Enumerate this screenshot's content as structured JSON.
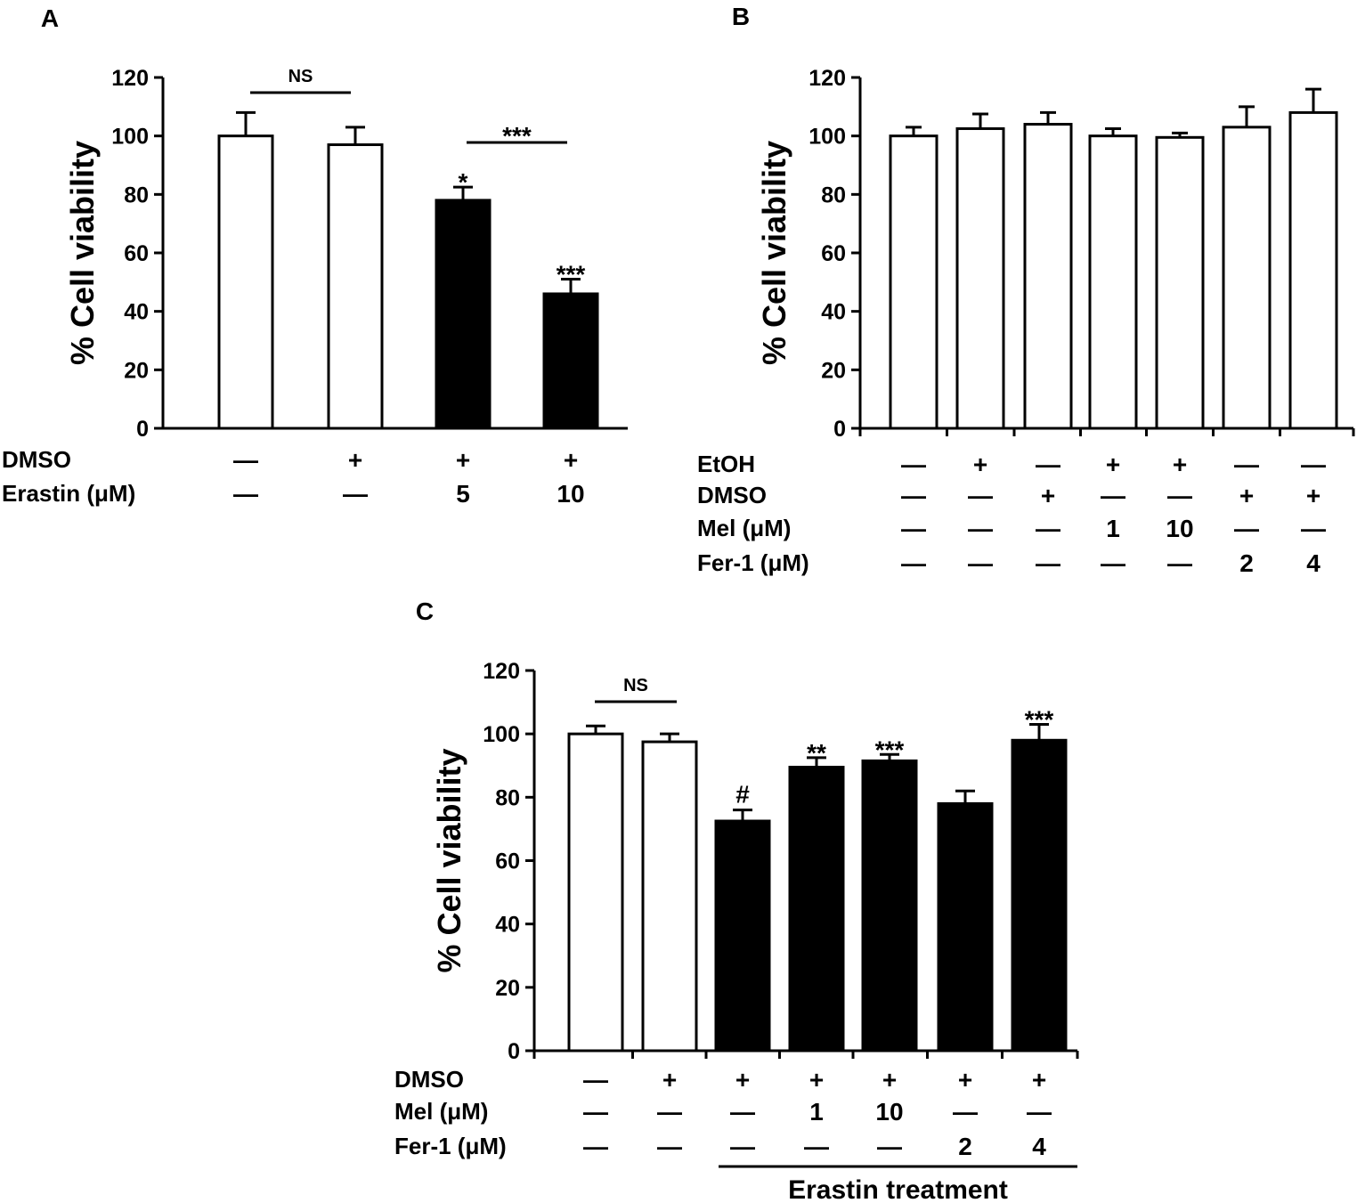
{
  "chart_data": [
    {
      "panel": "A",
      "type": "bar",
      "ylabel": "% Cell viability",
      "ylim": [
        0,
        120
      ],
      "yticks": [
        0,
        20,
        40,
        60,
        80,
        100,
        120
      ],
      "categories": [
        "1",
        "2",
        "3",
        "4"
      ],
      "values": [
        100,
        97,
        78,
        46
      ],
      "errors": [
        8,
        6,
        4.5,
        5
      ],
      "fills": [
        "#ffffff",
        "#ffffff",
        "#000000",
        "#000000"
      ],
      "significance": [
        "",
        "",
        "*",
        "***"
      ],
      "brackets": [
        {
          "from": 0,
          "to": 1,
          "label": "NS"
        },
        {
          "from": 2,
          "to": 3,
          "label": "***"
        }
      ],
      "conditions": [
        {
          "label": "DMSO",
          "values": [
            "—",
            "+",
            "+",
            "+"
          ]
        },
        {
          "label": "Erastin (μM)",
          "values": [
            "—",
            "—",
            "5",
            "10"
          ]
        }
      ]
    },
    {
      "panel": "B",
      "type": "bar",
      "ylabel": "% Cell viability",
      "ylim": [
        0,
        120
      ],
      "yticks": [
        0,
        20,
        40,
        60,
        80,
        100,
        120
      ],
      "categories": [
        "1",
        "2",
        "3",
        "4",
        "5",
        "6",
        "7"
      ],
      "values": [
        100,
        102.5,
        104,
        100,
        99.5,
        103,
        108
      ],
      "errors": [
        3,
        5,
        4,
        2.5,
        1.5,
        7,
        8
      ],
      "fills": [
        "#ffffff",
        "#ffffff",
        "#ffffff",
        "#ffffff",
        "#ffffff",
        "#ffffff",
        "#ffffff"
      ],
      "significance": [
        "",
        "",
        "",
        "",
        "",
        "",
        ""
      ],
      "brackets": [],
      "conditions": [
        {
          "label": "EtOH",
          "values": [
            "—",
            "+",
            "—",
            "+",
            "+",
            "—",
            "—"
          ]
        },
        {
          "label": "DMSO",
          "values": [
            "—",
            "—",
            "+",
            "—",
            "—",
            "+",
            "+"
          ]
        },
        {
          "label": "Mel (μM)",
          "values": [
            "—",
            "—",
            "—",
            "1",
            "10",
            "—",
            "—"
          ]
        },
        {
          "label": "Fer-1 (μM)",
          "values": [
            "—",
            "—",
            "—",
            "—",
            "—",
            "2",
            "4"
          ]
        }
      ]
    },
    {
      "panel": "C",
      "type": "bar",
      "ylabel": "% Cell viability",
      "ylim": [
        0,
        120
      ],
      "yticks": [
        0,
        20,
        40,
        60,
        80,
        100,
        120
      ],
      "categories": [
        "1",
        "2",
        "3",
        "4",
        "5",
        "6",
        "7"
      ],
      "values": [
        100,
        97.5,
        72.5,
        89.5,
        91.5,
        78,
        98
      ],
      "errors": [
        2.5,
        2.5,
        3.5,
        3,
        2,
        4,
        5
      ],
      "fills": [
        "#ffffff",
        "#ffffff",
        "#000000",
        "#000000",
        "#000000",
        "#000000",
        "#000000"
      ],
      "significance": [
        "",
        "",
        "#",
        "**",
        "***",
        "",
        "***"
      ],
      "brackets": [
        {
          "from": 0,
          "to": 1,
          "label": "NS"
        }
      ],
      "conditions": [
        {
          "label": "DMSO",
          "values": [
            "—",
            "+",
            "+",
            "+",
            "+",
            "+",
            "+"
          ]
        },
        {
          "label": "Mel (μM)",
          "values": [
            "—",
            "—",
            "—",
            "1",
            "10",
            "—",
            "—"
          ]
        },
        {
          "label": "Fer-1 (μM)",
          "values": [
            "—",
            "—",
            "—",
            "—",
            "—",
            "2",
            "4"
          ]
        }
      ],
      "group": {
        "label": "Erastin treatment",
        "from": 2,
        "to": 6
      }
    }
  ]
}
